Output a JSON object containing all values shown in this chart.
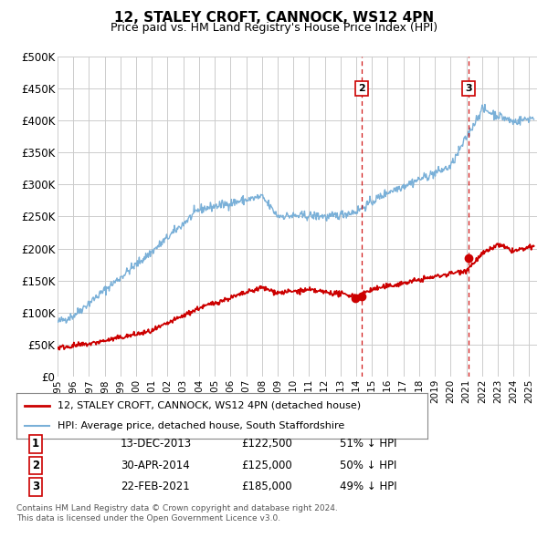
{
  "title": "12, STALEY CROFT, CANNOCK, WS12 4PN",
  "subtitle": "Price paid vs. HM Land Registry's House Price Index (HPI)",
  "ylabel_ticks": [
    "£0",
    "£50K",
    "£100K",
    "£150K",
    "£200K",
    "£250K",
    "£300K",
    "£350K",
    "£400K",
    "£450K",
    "£500K"
  ],
  "ytick_values": [
    0,
    50000,
    100000,
    150000,
    200000,
    250000,
    300000,
    350000,
    400000,
    450000,
    500000
  ],
  "ylim": [
    0,
    500000
  ],
  "xlim_start": 1995.0,
  "xlim_end": 2025.5,
  "hpi_color": "#7ab0d8",
  "price_color": "#cc0000",
  "vline_color": "#cc0000",
  "legend_label_red": "12, STALEY CROFT, CANNOCK, WS12 4PN (detached house)",
  "legend_label_blue": "HPI: Average price, detached house, South Staffordshire",
  "transactions": [
    {
      "label": "1",
      "date": "13-DEC-2013",
      "year": 2013.96,
      "price": 122500,
      "text_price": "£122,500",
      "text_pct": "51% ↓ HPI",
      "show_vline": false
    },
    {
      "label": "2",
      "date": "30-APR-2014",
      "year": 2014.33,
      "price": 125000,
      "text_price": "£125,000",
      "text_pct": "50% ↓ HPI",
      "show_vline": true
    },
    {
      "label": "3",
      "date": "22-FEB-2021",
      "year": 2021.14,
      "price": 185000,
      "text_price": "£185,000",
      "text_pct": "49% ↓ HPI",
      "show_vline": true
    }
  ],
  "footer_line1": "Contains HM Land Registry data © Crown copyright and database right 2024.",
  "footer_line2": "This data is licensed under the Open Government Licence v3.0.",
  "background_color": "#ffffff",
  "grid_color": "#cccccc"
}
